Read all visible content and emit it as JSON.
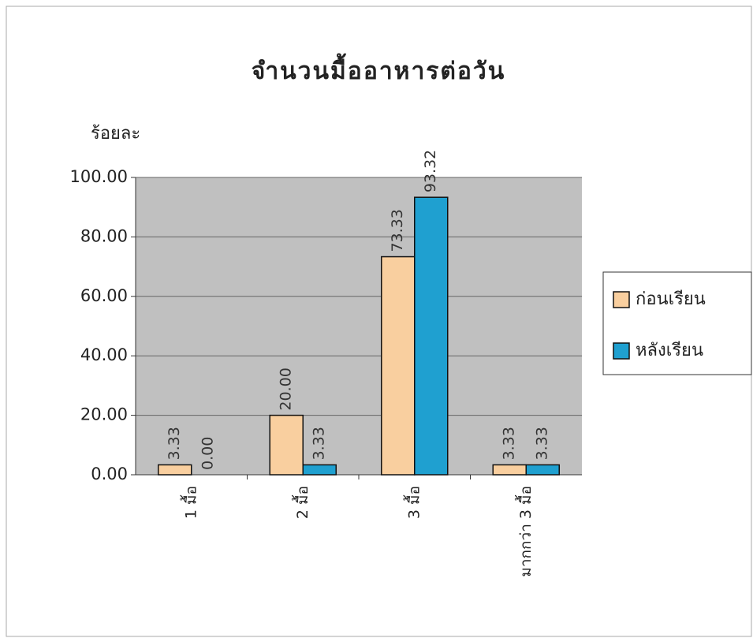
{
  "chart_data": {
    "type": "bar",
    "title": "จำนวนมื้ออาหารต่อวัน",
    "y_label": "ร้อยละ",
    "categories": [
      "1 มื้อ",
      "2 มื้อ",
      "3 มื้อ",
      "มากกว่า 3 มื้อ"
    ],
    "series": [
      {
        "name": "ก่อนเรียน",
        "color": "#f9cf9f",
        "values": [
          3.33,
          20,
          73.33,
          3.33
        ],
        "value_labels": [
          "3.33",
          "20.00",
          "73.33",
          "3.33"
        ]
      },
      {
        "name": "หลังเรียน",
        "color": "#1fa0d0",
        "values": [
          0,
          3.33,
          93.32,
          3.33
        ],
        "value_labels": [
          "0.00",
          "3.33",
          "93.32",
          "3.33"
        ]
      }
    ],
    "ylim": [
      0,
      100
    ],
    "yticks": [
      {
        "value": 0,
        "label": "0.00"
      },
      {
        "value": 20,
        "label": "20.00"
      },
      {
        "value": 40,
        "label": "40.00"
      },
      {
        "value": 60,
        "label": "60.00"
      },
      {
        "value": 80,
        "label": "80.00"
      },
      {
        "value": 100,
        "label": "100.00"
      }
    ],
    "grid": true,
    "legend": "right"
  }
}
